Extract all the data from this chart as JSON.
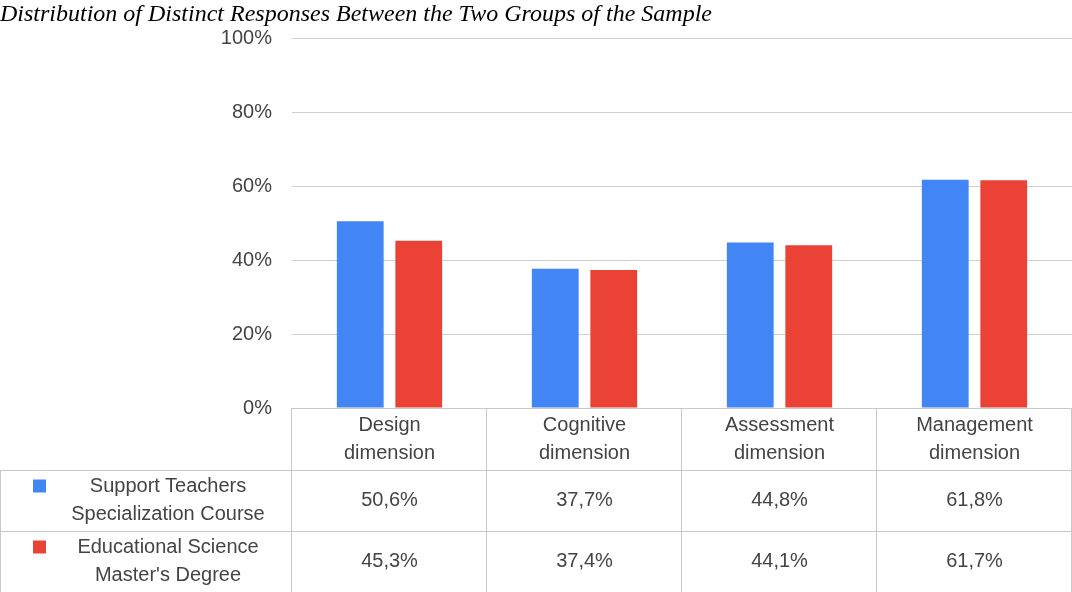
{
  "chart_data": {
    "type": "bar",
    "title": "Distribution of Distinct Responses Between the Two Groups of the Sample",
    "categories": [
      "Design dimension",
      "Cognitive dimension",
      "Assessment dimension",
      "Management dimension"
    ],
    "series": [
      {
        "name": "Support Teachers Specialization Course",
        "color": "#4285f4",
        "values": [
          50.6,
          37.7,
          44.8,
          61.8
        ],
        "value_labels": [
          "50,6%",
          "37,7%",
          "44,8%",
          "61,8%"
        ]
      },
      {
        "name": "Educational Science Master's Degree",
        "color": "#ea4335",
        "values": [
          45.3,
          37.4,
          44.1,
          61.7
        ],
        "value_labels": [
          "45,3%",
          "37,4%",
          "44,1%",
          "61,7%"
        ]
      }
    ],
    "ylim": [
      0,
      100
    ],
    "yticks": [
      {
        "value": 0,
        "label": "0%"
      },
      {
        "value": 20,
        "label": "20%"
      },
      {
        "value": 40,
        "label": "40%"
      },
      {
        "value": 60,
        "label": "60%"
      },
      {
        "value": 80,
        "label": "80%"
      },
      {
        "value": 100,
        "label": "100%"
      }
    ],
    "grid": "y",
    "legend": "bottom left"
  }
}
